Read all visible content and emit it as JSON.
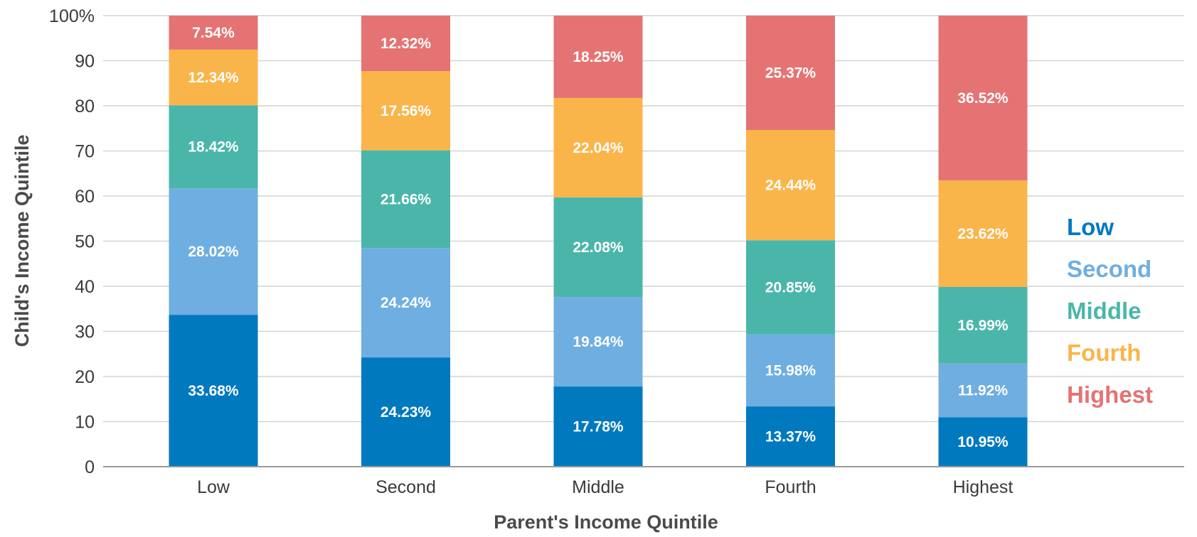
{
  "chart_data": {
    "type": "bar",
    "stacked": true,
    "title": "",
    "xlabel": "Parent's Income Quintile",
    "ylabel": "Child's Income Quintile",
    "ylim": [
      0,
      100
    ],
    "yticks": [
      0,
      10,
      20,
      30,
      40,
      50,
      60,
      70,
      80,
      90,
      100
    ],
    "ytick_labels": [
      "0",
      "10",
      "20",
      "30",
      "40",
      "50",
      "60",
      "70",
      "80",
      "90",
      "100%"
    ],
    "grid": true,
    "legend_position": "right",
    "categories": [
      "Low",
      "Second",
      "Middle",
      "Fourth",
      "Highest"
    ],
    "series": [
      {
        "name": "Low",
        "color": "#0179bf",
        "values": [
          33.68,
          24.23,
          17.78,
          13.37,
          10.95
        ],
        "labels": [
          "33.68%",
          "24.23%",
          "17.78%",
          "13.37%",
          "10.95%"
        ]
      },
      {
        "name": "Second",
        "color": "#6faee0",
        "values": [
          28.02,
          24.24,
          19.84,
          15.98,
          11.92
        ],
        "labels": [
          "28.02%",
          "24.24%",
          "19.84%",
          "15.98%",
          "11.92%"
        ]
      },
      {
        "name": "Middle",
        "color": "#4ab6aa",
        "values": [
          18.42,
          21.66,
          22.08,
          20.85,
          16.99
        ],
        "labels": [
          "18.42%",
          "21.66%",
          "22.08%",
          "20.85%",
          "16.99%"
        ]
      },
      {
        "name": "Fourth",
        "color": "#fab54a",
        "values": [
          12.34,
          17.56,
          22.04,
          24.44,
          23.62
        ],
        "labels": [
          "12.34%",
          "17.56%",
          "22.04%",
          "24.44%",
          "23.62%"
        ]
      },
      {
        "name": "Highest",
        "color": "#e57373",
        "values": [
          7.54,
          12.32,
          18.25,
          25.37,
          36.52
        ],
        "labels": [
          "7.54%",
          "12.32%",
          "18.25%",
          "25.37%",
          "36.52%"
        ]
      }
    ]
  }
}
